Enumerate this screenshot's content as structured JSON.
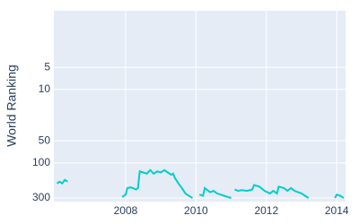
{
  "chart_data": {
    "type": "line",
    "y_label": "World Ranking",
    "x": [
      2006.05,
      2006.12,
      2006.2,
      2006.27,
      2006.35,
      null,
      2007.9,
      2008.0,
      2008.05,
      2008.15,
      2008.3,
      2008.35,
      2008.4,
      2008.5,
      2008.6,
      2008.7,
      2008.8,
      2008.9,
      2009.0,
      2009.1,
      2009.2,
      2009.3,
      2009.35,
      2009.4,
      2009.5,
      2009.6,
      2009.7,
      2009.85,
      2009.9,
      null,
      2010.1,
      2010.2,
      2010.25,
      2010.4,
      2010.5,
      2010.6,
      2010.8,
      2010.9,
      2011.0,
      null,
      2011.1,
      2011.2,
      2011.3,
      2011.45,
      2011.6,
      2011.65,
      2011.8,
      2011.95,
      2012.1,
      2012.2,
      2012.3,
      2012.35,
      2012.5,
      2012.6,
      2012.7,
      2012.8,
      2012.9,
      2013.0,
      2013.1,
      2013.2,
      null,
      2013.95,
      2014.0,
      2014.1,
      2014.2
    ],
    "values": [
      190,
      180,
      190,
      170,
      180,
      null,
      290,
      270,
      220,
      215,
      230,
      220,
      130,
      135,
      140,
      125,
      140,
      130,
      135,
      125,
      135,
      145,
      140,
      160,
      190,
      220,
      260,
      290,
      300,
      null,
      270,
      280,
      220,
      250,
      240,
      260,
      280,
      290,
      300,
      null,
      230,
      240,
      235,
      240,
      230,
      200,
      210,
      240,
      260,
      240,
      260,
      210,
      220,
      240,
      220,
      240,
      250,
      260,
      280,
      300,
      null,
      300,
      270,
      280,
      300
    ],
    "color": "#00cec8",
    "xlim": [
      2005.96,
      2014.25
    ],
    "xticks": [
      2008,
      2010,
      2012,
      2014
    ],
    "ylim": [
      0.85,
      336
    ],
    "yticks": [
      5,
      10,
      50,
      100,
      300
    ],
    "log_y": true,
    "y_reversed": true,
    "grid": true
  }
}
